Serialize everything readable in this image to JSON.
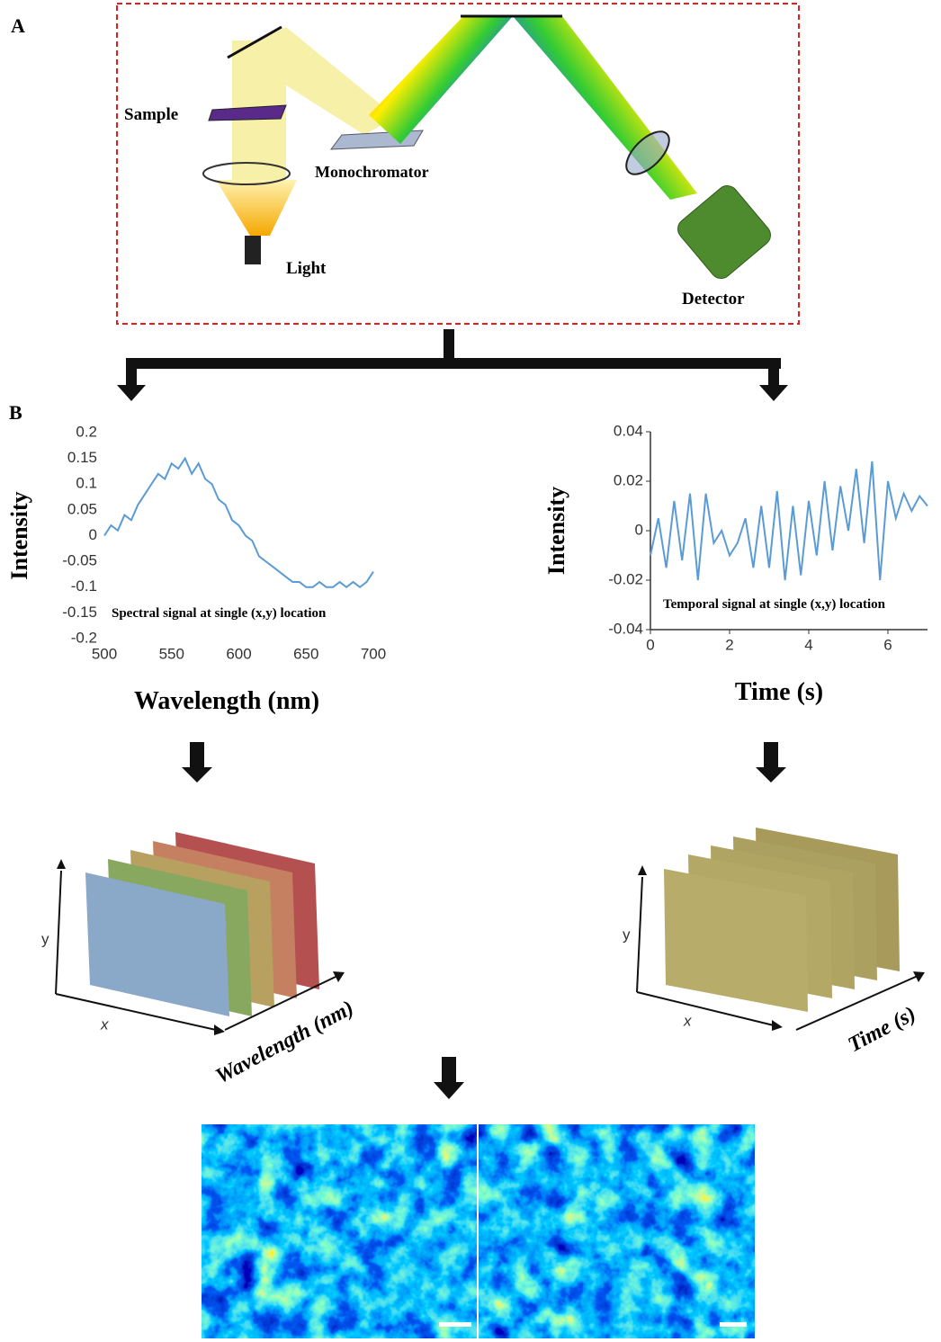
{
  "panels": {
    "a": "A",
    "b": "B"
  },
  "setup": {
    "sample": "Sample",
    "monochromator": "Monochromator",
    "light": "Light",
    "detector": "Detector"
  },
  "stacks": [
    {
      "y": "y",
      "x": "x",
      "axis": "Wavelength (nm)"
    },
    {
      "y": "y",
      "x": "x",
      "axis": "Time (s)"
    }
  ],
  "chart_data": [
    {
      "type": "line",
      "annotation": "Spectral signal at single (x,y) location",
      "xlabel": "Wavelength (nm)",
      "ylabel": "Intensity",
      "x": [
        500,
        505,
        510,
        515,
        520,
        525,
        530,
        535,
        540,
        545,
        550,
        555,
        560,
        565,
        570,
        575,
        580,
        585,
        590,
        595,
        600,
        605,
        610,
        615,
        620,
        625,
        630,
        635,
        640,
        645,
        650,
        655,
        660,
        665,
        670,
        675,
        680,
        685,
        690,
        695,
        700
      ],
      "values": [
        0.0,
        0.02,
        0.01,
        0.04,
        0.03,
        0.06,
        0.08,
        0.1,
        0.12,
        0.11,
        0.14,
        0.13,
        0.15,
        0.12,
        0.14,
        0.11,
        0.1,
        0.07,
        0.06,
        0.03,
        0.02,
        0.0,
        -0.01,
        -0.04,
        -0.05,
        -0.06,
        -0.07,
        -0.08,
        -0.09,
        -0.09,
        -0.1,
        -0.1,
        -0.09,
        -0.1,
        -0.1,
        -0.09,
        -0.1,
        -0.09,
        -0.1,
        -0.09,
        -0.07
      ],
      "color": "#5b9bd5",
      "xlim": [
        500,
        700
      ],
      "ylim": [
        -0.2,
        0.2
      ],
      "xticks": [
        500,
        550,
        600,
        650,
        700
      ],
      "yticks": [
        0.2,
        0.15,
        0.1,
        0.05,
        0,
        -0.05,
        -0.1,
        -0.15,
        -0.2
      ],
      "axis_lines": false
    },
    {
      "type": "line",
      "annotation": "Temporal signal at single (x,y) location",
      "xlabel": "Time (s)",
      "ylabel": "Intensity",
      "x": [
        0,
        0.2,
        0.4,
        0.6,
        0.8,
        1.0,
        1.2,
        1.4,
        1.6,
        1.8,
        2.0,
        2.2,
        2.4,
        2.6,
        2.8,
        3.0,
        3.2,
        3.4,
        3.6,
        3.8,
        4.0,
        4.2,
        4.4,
        4.6,
        4.8,
        5.0,
        5.2,
        5.4,
        5.6,
        5.8,
        6.0,
        6.2,
        6.4,
        6.6,
        6.8,
        7.0
      ],
      "values": [
        -0.01,
        0.005,
        -0.015,
        0.012,
        -0.012,
        0.015,
        -0.02,
        0.015,
        -0.005,
        0.0,
        -0.01,
        -0.005,
        0.005,
        -0.015,
        0.01,
        -0.015,
        0.016,
        -0.02,
        0.01,
        -0.018,
        0.012,
        -0.01,
        0.02,
        -0.008,
        0.018,
        0.0,
        0.025,
        -0.005,
        0.028,
        -0.02,
        0.02,
        0.005,
        0.015,
        0.008,
        0.014,
        0.01
      ],
      "color": "#5b9bd5",
      "xlim": [
        0,
        7
      ],
      "ylim": [
        -0.04,
        0.04
      ],
      "xticks": [
        0,
        2,
        4,
        6
      ],
      "yticks": [
        0.04,
        0.02,
        0,
        -0.02,
        -0.04
      ],
      "axis_lines": true
    }
  ]
}
